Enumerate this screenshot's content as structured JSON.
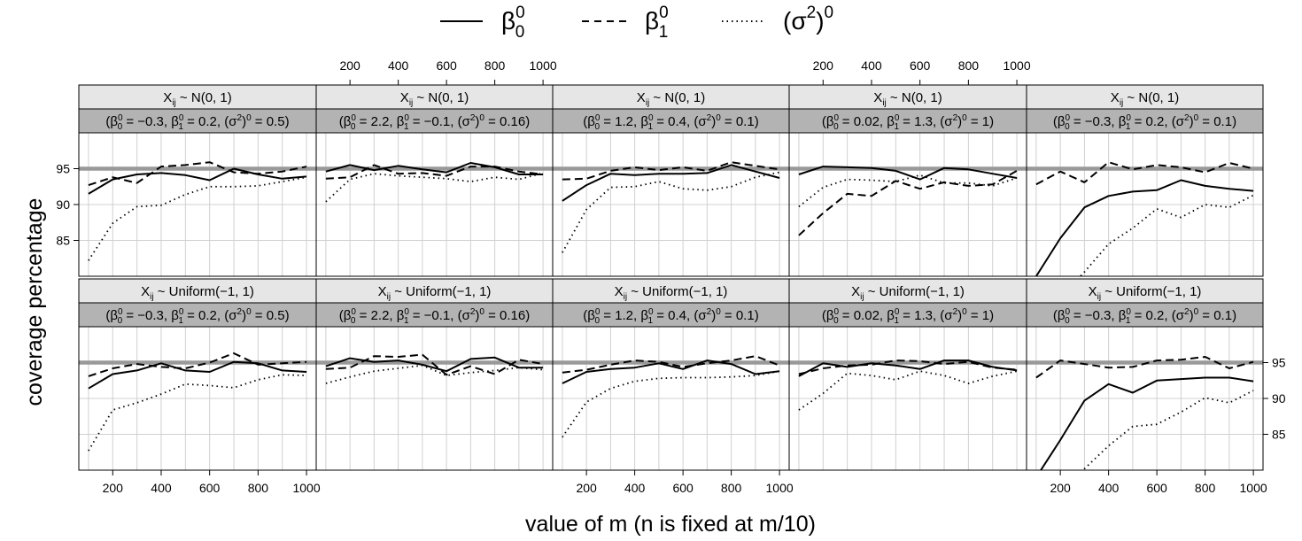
{
  "chart_data": {
    "type": "line",
    "xlabel": "value of m (n is fixed at m/10)",
    "ylabel": "coverage percentage",
    "xlim": [
      60,
      1040
    ],
    "ylim": [
      80,
      100
    ],
    "xticks": [
      200,
      400,
      600,
      800,
      1000
    ],
    "yticks": [
      85,
      90,
      95
    ],
    "reference_line": 95,
    "x": [
      100,
      200,
      300,
      400,
      500,
      600,
      700,
      800,
      900,
      1000
    ],
    "legend": {
      "position": "top",
      "entries": [
        {
          "key": "b0",
          "label": "β",
          "sub": "0",
          "sup": "0",
          "style": "solid"
        },
        {
          "key": "b1",
          "label": "β",
          "sub": "1",
          "sup": "0",
          "style": "dashed"
        },
        {
          "key": "s2",
          "label": "(σ",
          "sup_mid": "2",
          "tail": ")",
          "sup": "0",
          "style": "dotted"
        }
      ]
    },
    "rows": [
      {
        "label": "Xij ~ N(0, 1)",
        "distribution": "N(0, 1)"
      },
      {
        "label": "Xij ~ Uniform(−1, 1)",
        "distribution": "Uniform(−1, 1)"
      }
    ],
    "columns": [
      {
        "params": "(β00 = −0.3, β10 = 0.2, (σ2)0 = 0.5)",
        "b0": "−0.3",
        "b1": "0.2",
        "s2": "0.5"
      },
      {
        "params": "(β00 = 2.2, β10 = −0.1, (σ2)0 = 0.16)",
        "b0": "2.2",
        "b1": "−0.1",
        "s2": "0.16"
      },
      {
        "params": "(β00 = 1.2, β10 = 0.4, (σ2)0 = 0.1)",
        "b0": "1.2",
        "b1": "0.4",
        "s2": "0.1"
      },
      {
        "params": "(β00 = 0.02, β10 = 1.3, (σ2)0 = 1)",
        "b0": "0.02",
        "b1": "1.3",
        "s2": "1"
      },
      {
        "params": "(β00 = −0.3, β10 = 0.2, (σ2)0 = 0.1)",
        "b0": "−0.3",
        "b1": "0.2",
        "s2": "0.1"
      }
    ],
    "panels": [
      [
        {
          "b0": [
            91.5,
            93.5,
            94.2,
            94.4,
            94.1,
            93.4,
            95.0,
            94.2,
            93.6,
            93.9
          ],
          "b1": [
            92.7,
            93.8,
            93.0,
            95.3,
            95.5,
            95.9,
            94.5,
            94.3,
            94.6,
            95.3
          ],
          "s2": [
            82.2,
            87.4,
            89.7,
            89.9,
            91.4,
            92.5,
            92.5,
            92.6,
            93.2,
            93.8
          ]
        },
        {
          "b0": [
            94.6,
            95.5,
            94.8,
            95.4,
            94.9,
            94.5,
            95.8,
            95.2,
            94.2,
            94.2
          ],
          "b1": [
            93.6,
            93.8,
            95.5,
            94.3,
            94.4,
            94.0,
            95.3,
            95.3,
            94.6,
            94.2
          ],
          "s2": [
            90.4,
            93.5,
            94.3,
            94.0,
            93.8,
            93.6,
            93.2,
            93.8,
            93.5,
            94.4
          ]
        },
        {
          "b0": [
            90.5,
            92.7,
            94.3,
            94.1,
            94.3,
            94.3,
            94.4,
            95.5,
            94.6,
            93.7
          ],
          "b1": [
            93.5,
            93.6,
            94.7,
            95.2,
            94.8,
            95.2,
            94.7,
            95.9,
            95.4,
            94.9
          ],
          "s2": [
            83.3,
            89.3,
            92.4,
            92.5,
            93.2,
            92.2,
            92.0,
            92.5,
            93.8,
            94.5
          ]
        },
        {
          "b0": [
            94.2,
            95.3,
            95.2,
            95.1,
            94.7,
            93.5,
            95.1,
            94.9,
            94.3,
            93.7
          ],
          "b1": [
            85.7,
            88.8,
            91.5,
            91.2,
            93.3,
            92.2,
            93.1,
            92.6,
            92.8,
            94.7
          ],
          "s2": [
            89.7,
            92.4,
            93.5,
            93.4,
            93.2,
            94.1,
            93.0,
            93.0,
            92.6,
            93.7
          ]
        },
        {
          "b0": [
            80.0,
            85.3,
            89.6,
            91.2,
            91.8,
            92.0,
            93.4,
            92.6,
            92.2,
            91.9
          ],
          "b1": [
            92.8,
            94.6,
            93.1,
            95.9,
            94.9,
            95.5,
            95.2,
            94.5,
            95.8,
            95.0
          ],
          "s2": [
            72.0,
            77.0,
            80.6,
            84.5,
            86.7,
            89.4,
            88.2,
            90.0,
            89.6,
            91.3
          ]
        }
      ],
      [
        {
          "b0": [
            91.4,
            93.4,
            93.9,
            94.9,
            93.9,
            93.7,
            95.1,
            94.9,
            93.9,
            93.7
          ],
          "b1": [
            93.1,
            94.2,
            94.8,
            94.4,
            94.2,
            95.0,
            96.3,
            94.7,
            94.9,
            95.1
          ],
          "s2": [
            82.7,
            88.4,
            89.4,
            90.6,
            92.0,
            91.8,
            91.5,
            92.6,
            93.3,
            93.2
          ]
        },
        {
          "b0": [
            94.5,
            95.6,
            95.1,
            95.3,
            94.7,
            93.8,
            95.5,
            95.7,
            94.3,
            94.3
          ],
          "b1": [
            94.1,
            94.3,
            95.9,
            95.8,
            96.1,
            93.3,
            94.5,
            93.4,
            95.4,
            94.8
          ],
          "s2": [
            92.1,
            93.0,
            93.8,
            94.2,
            94.6,
            93.2,
            93.6,
            93.9,
            94.3,
            94.0
          ]
        },
        {
          "b0": [
            92.1,
            93.7,
            94.1,
            94.3,
            94.9,
            94.1,
            95.3,
            94.8,
            93.4,
            93.8
          ],
          "b1": [
            93.6,
            94.0,
            94.7,
            95.3,
            95.1,
            94.4,
            94.9,
            95.3,
            95.9,
            94.6
          ],
          "s2": [
            84.6,
            89.5,
            91.4,
            92.4,
            92.8,
            92.9,
            92.9,
            93.0,
            93.2,
            93.8
          ]
        },
        {
          "b0": [
            93.1,
            94.9,
            94.4,
            94.9,
            94.6,
            94.1,
            95.3,
            95.3,
            94.4,
            93.9
          ],
          "b1": [
            93.4,
            94.2,
            94.6,
            94.7,
            95.3,
            95.2,
            94.8,
            95.1,
            94.3,
            94.0
          ],
          "s2": [
            88.4,
            90.7,
            93.5,
            93.2,
            92.6,
            93.8,
            93.2,
            92.1,
            93.1,
            93.8
          ]
        },
        {
          "b0": [
            79.0,
            84.2,
            89.7,
            92.0,
            90.8,
            92.5,
            92.7,
            92.9,
            92.9,
            92.4
          ],
          "b1": [
            92.9,
            95.3,
            94.8,
            94.3,
            94.4,
            95.3,
            95.4,
            95.8,
            94.2,
            95.1
          ],
          "s2": [
            72.5,
            76.5,
            80.2,
            83.4,
            86.1,
            86.4,
            88.1,
            90.1,
            89.4,
            91.1
          ]
        }
      ]
    ]
  }
}
